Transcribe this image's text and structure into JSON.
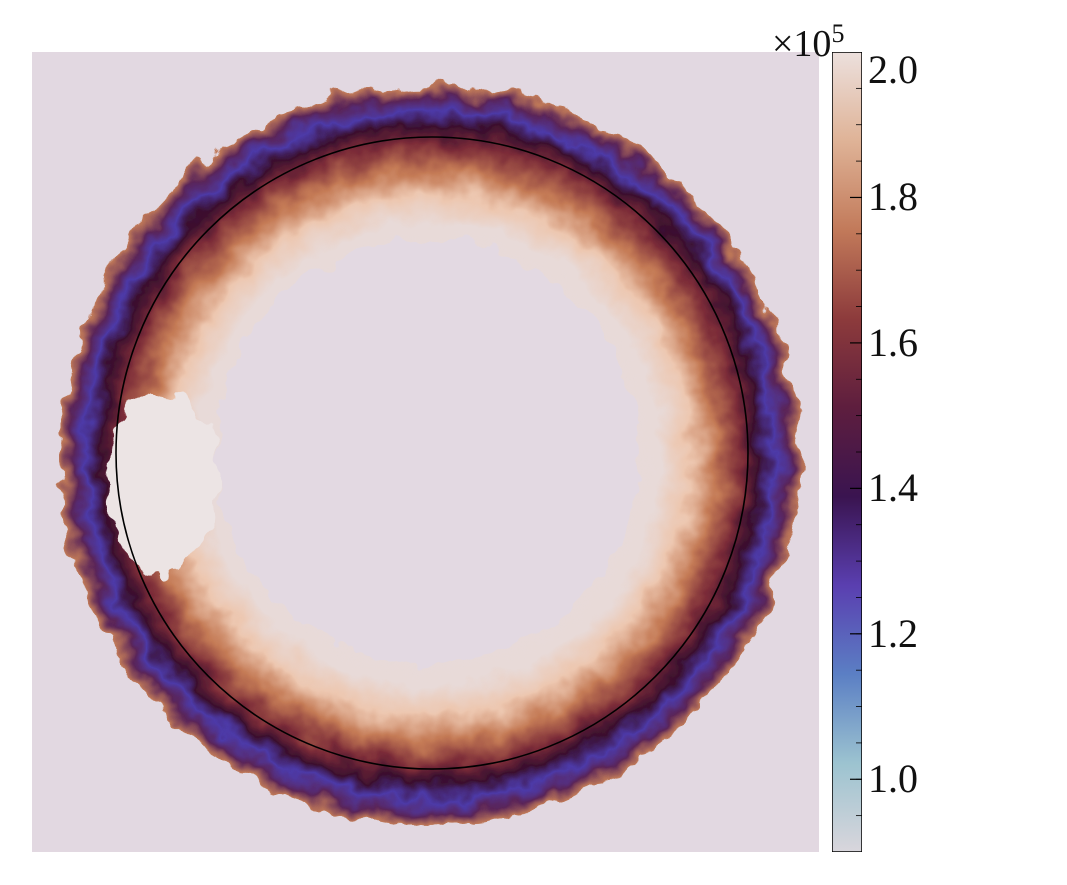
{
  "colorbar": {
    "multiplier_base": "×10",
    "multiplier_exp": "5",
    "ticks": [
      {
        "label": "2.0",
        "value": 2.0
      },
      {
        "label": "1.8",
        "value": 1.8
      },
      {
        "label": "1.6",
        "value": 1.6
      },
      {
        "label": "1.4",
        "value": 1.4
      },
      {
        "label": "1.2",
        "value": 1.2
      },
      {
        "label": "1.0",
        "value": 1.0
      }
    ],
    "range": [
      0.9,
      2.0
    ],
    "colormap": [
      "#d9d6dc",
      "#9cc3d0",
      "#5b7fc4",
      "#5a3fb0",
      "#3a1450",
      "#5e1e3e",
      "#8d3b3c",
      "#c27a5a",
      "#dfb397",
      "#ece0dd"
    ]
  },
  "colors": {
    "background": "#e2d8e1",
    "ring_inner": "#f3e4e0",
    "ring_mid": "#c26f4f",
    "ring_dark": "#3b0f30",
    "ring_outer_blue": "#4c38a8",
    "circle_line": "#000000"
  }
}
